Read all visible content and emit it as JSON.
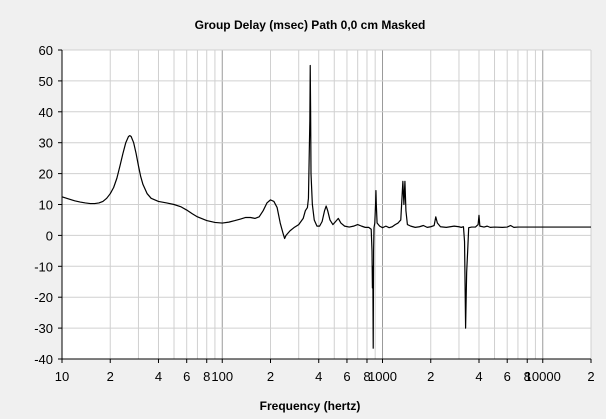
{
  "chart_data": {
    "type": "line",
    "title": "Group Delay (msec)   Path 0,0 cm   Masked",
    "xlabel": "Frequency (hertz)",
    "ylabel": "",
    "x_scale": "log",
    "xlim": [
      10,
      20000
    ],
    "ylim": [
      -40,
      60
    ],
    "grid": true,
    "legend": "none",
    "y_ticks": [
      60,
      50,
      40,
      30,
      20,
      10,
      0,
      -10,
      -20,
      -30,
      -40
    ],
    "x_tick_labels": [
      {
        "value": 10,
        "label": "10"
      },
      {
        "value": 20,
        "label": "2"
      },
      {
        "value": 40,
        "label": "4"
      },
      {
        "value": 60,
        "label": "6"
      },
      {
        "value": 80,
        "label": "8"
      },
      {
        "value": 100,
        "label": "100"
      },
      {
        "value": 200,
        "label": "2"
      },
      {
        "value": 400,
        "label": "4"
      },
      {
        "value": 600,
        "label": "6"
      },
      {
        "value": 800,
        "label": "8"
      },
      {
        "value": 1000,
        "label": "1000"
      },
      {
        "value": 2000,
        "label": "2"
      },
      {
        "value": 4000,
        "label": "4"
      },
      {
        "value": 6000,
        "label": "6"
      },
      {
        "value": 8000,
        "label": "8"
      },
      {
        "value": 10000,
        "label": "10000"
      },
      {
        "value": 20000,
        "label": "2"
      }
    ],
    "series": [
      {
        "color": "#000000",
        "points": [
          [
            10,
            12.5
          ],
          [
            11,
            11.8
          ],
          [
            12,
            11.2
          ],
          [
            13,
            10.8
          ],
          [
            14,
            10.5
          ],
          [
            15,
            10.3
          ],
          [
            16,
            10.3
          ],
          [
            17,
            10.5
          ],
          [
            18,
            11.0
          ],
          [
            19,
            12.0
          ],
          [
            20,
            13.5
          ],
          [
            21,
            15.5
          ],
          [
            22,
            18.5
          ],
          [
            23,
            22.5
          ],
          [
            24,
            26.5
          ],
          [
            25,
            30.0
          ],
          [
            26,
            32.0
          ],
          [
            26.5,
            32.3
          ],
          [
            27,
            32.0
          ],
          [
            28,
            30.0
          ],
          [
            29,
            26.5
          ],
          [
            30,
            22.5
          ],
          [
            31,
            19.0
          ],
          [
            32,
            16.5
          ],
          [
            34,
            13.5
          ],
          [
            36,
            12.0
          ],
          [
            40,
            11.0
          ],
          [
            45,
            10.5
          ],
          [
            50,
            10.0
          ],
          [
            55,
            9.3
          ],
          [
            60,
            8.2
          ],
          [
            65,
            7.0
          ],
          [
            70,
            6.0
          ],
          [
            80,
            4.8
          ],
          [
            90,
            4.2
          ],
          [
            100,
            4.0
          ],
          [
            110,
            4.3
          ],
          [
            120,
            4.8
          ],
          [
            130,
            5.3
          ],
          [
            140,
            5.8
          ],
          [
            150,
            5.8
          ],
          [
            160,
            5.5
          ],
          [
            170,
            6.0
          ],
          [
            180,
            8.0
          ],
          [
            190,
            10.5
          ],
          [
            200,
            11.5
          ],
          [
            210,
            11.0
          ],
          [
            220,
            9.0
          ],
          [
            230,
            4.0
          ],
          [
            240,
            0.5
          ],
          [
            245,
            -1.0
          ],
          [
            250,
            0.0
          ],
          [
            265,
            1.5
          ],
          [
            280,
            2.5
          ],
          [
            300,
            3.5
          ],
          [
            320,
            5.5
          ],
          [
            330,
            8.0
          ],
          [
            340,
            9.0
          ],
          [
            345,
            12.0
          ],
          [
            350,
            30.0
          ],
          [
            352,
            37.0
          ],
          [
            354,
            55.0
          ],
          [
            356,
            40.0
          ],
          [
            358,
            20.0
          ],
          [
            365,
            10.0
          ],
          [
            375,
            5.0
          ],
          [
            390,
            3.0
          ],
          [
            405,
            3.0
          ],
          [
            420,
            4.5
          ],
          [
            435,
            8.0
          ],
          [
            445,
            9.5
          ],
          [
            455,
            8.0
          ],
          [
            470,
            5.0
          ],
          [
            490,
            3.5
          ],
          [
            510,
            4.5
          ],
          [
            530,
            5.5
          ],
          [
            550,
            4.0
          ],
          [
            580,
            3.0
          ],
          [
            620,
            2.7
          ],
          [
            660,
            3.0
          ],
          [
            700,
            3.5
          ],
          [
            740,
            3.0
          ],
          [
            780,
            2.6
          ],
          [
            820,
            2.6
          ],
          [
            850,
            2.0
          ],
          [
            860,
            -5.0
          ],
          [
            865,
            -17.0
          ],
          [
            870,
            -10.0
          ],
          [
            875,
            -36.5
          ],
          [
            880,
            -5.0
          ],
          [
            885,
            2.5
          ],
          [
            895,
            4.0
          ],
          [
            905,
            10.0
          ],
          [
            910,
            14.5
          ],
          [
            915,
            10.0
          ],
          [
            925,
            4.0
          ],
          [
            960,
            3.0
          ],
          [
            1000,
            2.5
          ],
          [
            1050,
            3.0
          ],
          [
            1100,
            2.5
          ],
          [
            1150,
            2.8
          ],
          [
            1200,
            3.5
          ],
          [
            1250,
            4.0
          ],
          [
            1300,
            5.0
          ],
          [
            1340,
            17.5
          ],
          [
            1360,
            10.0
          ],
          [
            1380,
            17.5
          ],
          [
            1400,
            8.0
          ],
          [
            1430,
            3.5
          ],
          [
            1500,
            3.0
          ],
          [
            1600,
            2.6
          ],
          [
            1700,
            2.8
          ],
          [
            1800,
            3.2
          ],
          [
            1900,
            2.6
          ],
          [
            2000,
            2.8
          ],
          [
            2100,
            3.2
          ],
          [
            2150,
            6.0
          ],
          [
            2200,
            4.0
          ],
          [
            2300,
            2.8
          ],
          [
            2500,
            2.6
          ],
          [
            2800,
            3.0
          ],
          [
            3000,
            2.8
          ],
          [
            3100,
            2.6
          ],
          [
            3200,
            2.8
          ],
          [
            3250,
            -2.0
          ],
          [
            3300,
            -30.0
          ],
          [
            3350,
            -12.0
          ],
          [
            3400,
            -5.0
          ],
          [
            3450,
            2.5
          ],
          [
            3600,
            2.7
          ],
          [
            3800,
            2.7
          ],
          [
            3950,
            3.5
          ],
          [
            4000,
            6.5
          ],
          [
            4050,
            3.0
          ],
          [
            4300,
            2.7
          ],
          [
            4500,
            3.0
          ],
          [
            4700,
            2.6
          ],
          [
            5000,
            2.7
          ],
          [
            5600,
            2.6
          ],
          [
            6000,
            2.7
          ],
          [
            6300,
            3.2
          ],
          [
            6600,
            2.6
          ],
          [
            7000,
            2.7
          ],
          [
            10000,
            2.7
          ],
          [
            15000,
            2.7
          ],
          [
            20000,
            2.7
          ]
        ]
      }
    ]
  }
}
